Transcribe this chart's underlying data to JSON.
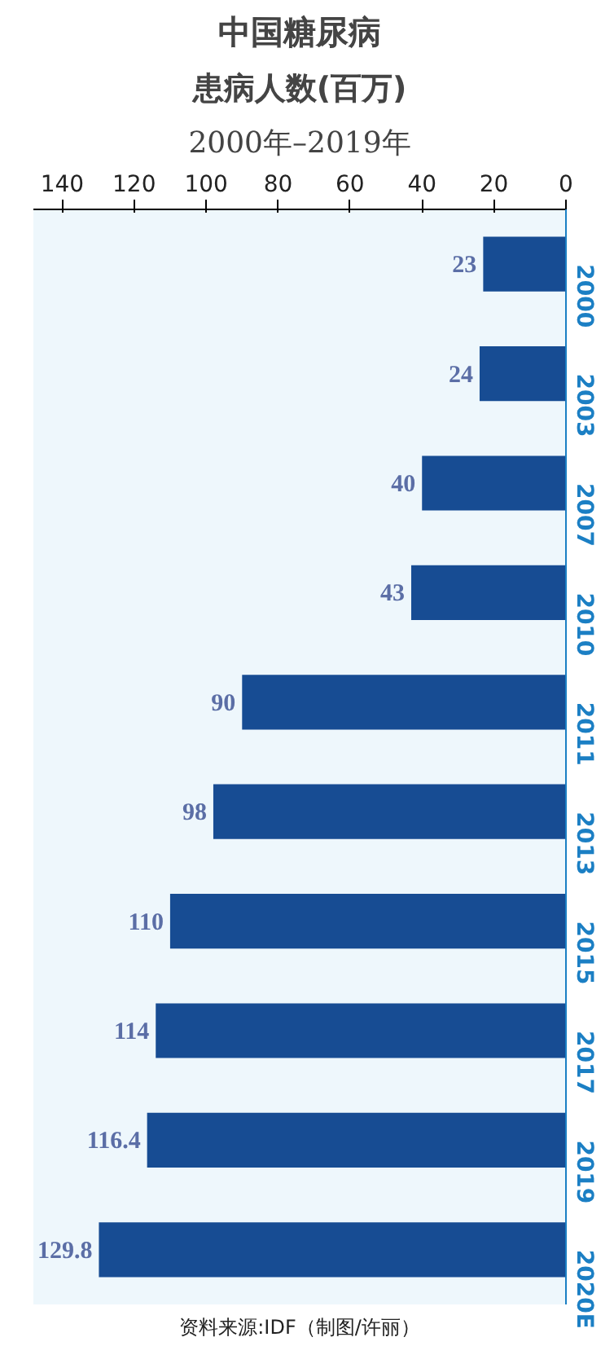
{
  "chart_data": {
    "type": "bar",
    "orientation": "horizontal",
    "title": "中国糖尿病",
    "subtitle": "患病人数(百万)",
    "annotations": [
      "2000年–2019年",
      "资料来源:IDF（制图/许丽）"
    ],
    "categories": [
      "2000",
      "2003",
      "2007",
      "2010",
      "2011",
      "2013",
      "2015",
      "2017",
      "2019",
      "2020E"
    ],
    "values": [
      23,
      24,
      40,
      43,
      90,
      98,
      110,
      114,
      116.4,
      129.8
    ],
    "color": "#174c93",
    "xlim": [
      148,
      0
    ],
    "xticks": [
      140,
      120,
      100,
      80,
      60,
      40,
      20,
      0
    ],
    "data_labels": true,
    "grid": false
  }
}
